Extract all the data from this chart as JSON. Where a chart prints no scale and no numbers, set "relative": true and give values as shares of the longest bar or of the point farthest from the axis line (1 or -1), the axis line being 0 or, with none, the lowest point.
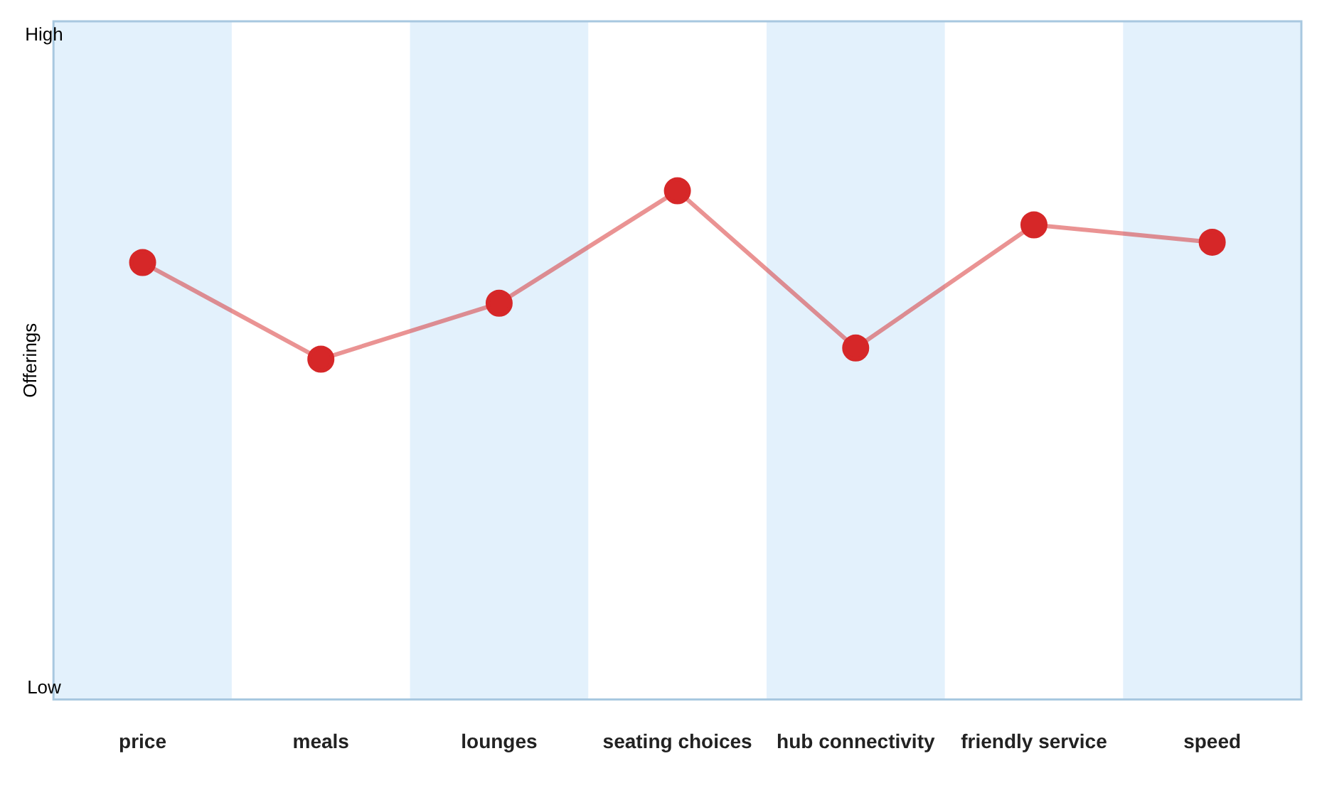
{
  "chart_data": {
    "type": "line",
    "ylabel": "Offerings",
    "relative": true,
    "categories": [
      "price",
      "meals",
      "lounges",
      "seating choices",
      "hub connectivity",
      "friendly service",
      "speed"
    ],
    "series": [
      {
        "color": "#d62728",
        "values": [
          0.859,
          0.669,
          0.779,
          1,
          0.691,
          0.933,
          0.899
        ]
      }
    ],
    "marker": "circle",
    "line_style": "solid",
    "grid": false,
    "legend": false,
    "bands": [
      {
        "axis": "x",
        "from": "price",
        "to": "price",
        "color": "#e3f1fc"
      },
      {
        "axis": "x",
        "from": "lounges",
        "to": "lounges",
        "color": "#e3f1fc"
      },
      {
        "axis": "x",
        "from": "hub connectivity",
        "to": "hub connectivity",
        "color": "#e3f1fc"
      },
      {
        "axis": "x",
        "from": "speed",
        "to": "speed",
        "color": "#e3f1fc"
      }
    ],
    "annotations": [
      "High",
      "Low"
    ]
  }
}
